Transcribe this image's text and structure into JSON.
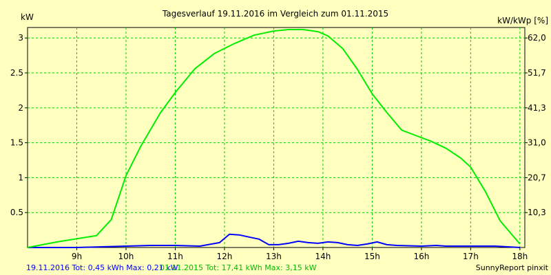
{
  "chart_data": {
    "type": "line",
    "title": "Tagesverlauf 19.11.2016 im Vergleich zum 01.11.2015",
    "ylabel_left": "kW",
    "ylabel_right": "kW/kWp [%]",
    "ylim": [
      0,
      3.15
    ],
    "yticks_left": [
      "0.5",
      "1",
      "1.5",
      "2",
      "2.5",
      "3"
    ],
    "yticks_left_values": [
      0.5,
      1,
      1.5,
      2,
      2.5,
      3
    ],
    "yticks_right": [
      "10,3",
      "20,7",
      "31,0",
      "41,3",
      "51,7",
      "62,0"
    ],
    "yticks_right_values": [
      0.5,
      1.0,
      1.5,
      2.0,
      2.5,
      3.0
    ],
    "xlim": [
      8.0,
      18.1
    ],
    "xticks": [
      "9h",
      "10h",
      "11h",
      "12h",
      "13h",
      "14h",
      "15h",
      "16h",
      "17h",
      "18h"
    ],
    "xticks_values": [
      9,
      10,
      11,
      12,
      13,
      14,
      15,
      16,
      17,
      18
    ],
    "grid": true,
    "series": [
      {
        "name": "19.11.2016",
        "color": "#0000ff",
        "x": [
          8.0,
          9.0,
          9.5,
          10.0,
          10.5,
          11.0,
          11.5,
          11.9,
          12.1,
          12.3,
          12.5,
          12.7,
          12.9,
          13.1,
          13.3,
          13.5,
          13.7,
          13.9,
          14.1,
          14.3,
          14.5,
          14.7,
          14.9,
          15.1,
          15.3,
          15.5,
          16.0,
          16.3,
          16.5,
          17.0,
          17.5,
          18.0
        ],
        "y": [
          0.0,
          0.0,
          0.01,
          0.02,
          0.03,
          0.03,
          0.02,
          0.07,
          0.19,
          0.18,
          0.15,
          0.12,
          0.04,
          0.04,
          0.06,
          0.09,
          0.07,
          0.06,
          0.08,
          0.07,
          0.04,
          0.03,
          0.05,
          0.08,
          0.04,
          0.03,
          0.02,
          0.03,
          0.02,
          0.02,
          0.02,
          0.0
        ]
      },
      {
        "name": "01.11.2015",
        "color": "#00ee00",
        "x": [
          8.0,
          8.6,
          9.4,
          9.7,
          10.0,
          10.3,
          10.7,
          11.0,
          11.4,
          11.8,
          12.2,
          12.6,
          13.0,
          13.3,
          13.6,
          13.9,
          14.1,
          14.4,
          14.7,
          15.0,
          15.3,
          15.6,
          15.9,
          16.2,
          16.5,
          16.8,
          17.0,
          17.3,
          17.6,
          18.0
        ],
        "y": [
          0.0,
          0.08,
          0.17,
          0.4,
          1.03,
          1.45,
          1.93,
          2.22,
          2.56,
          2.78,
          2.92,
          3.04,
          3.1,
          3.12,
          3.12,
          3.09,
          3.03,
          2.85,
          2.55,
          2.2,
          1.93,
          1.68,
          1.6,
          1.52,
          1.42,
          1.28,
          1.15,
          0.8,
          0.38,
          0.05
        ]
      }
    ]
  },
  "footer": {
    "blue_text": "19.11.2016 Tot: 0,45 kWh Max: 0,21 kW",
    "green_text": "01.11.2015 Tot: 17,41 kWh Max: 3,15 kW",
    "credit": "SunnyReport pinxit"
  }
}
